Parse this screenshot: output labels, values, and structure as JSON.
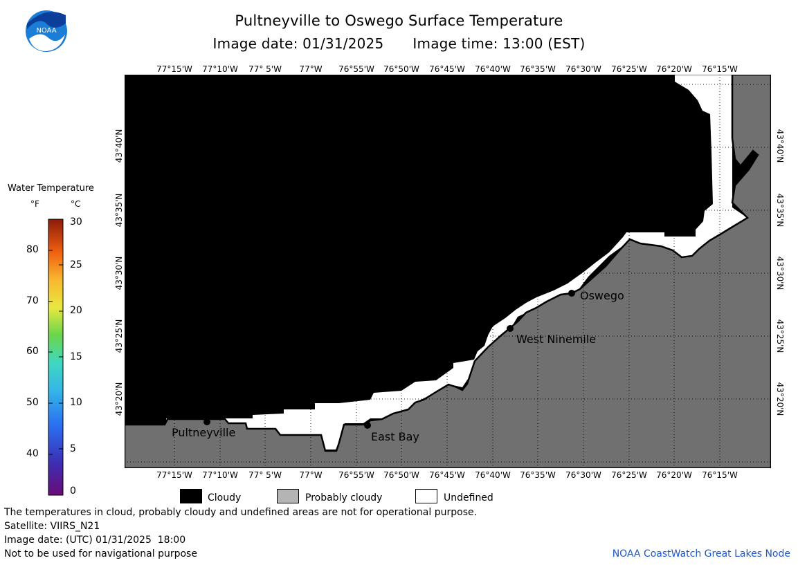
{
  "title": "Pultneyville to Oswego Surface Temperature",
  "image_date_label": "Image date: 01/31/2025",
  "image_time_label": "Image time: 13:00 (EST)",
  "logo": {
    "icon": "noaa-logo",
    "text": "NOAA"
  },
  "longitude_labels": [
    "77°15'W",
    "77°10'W",
    "77° 5'W",
    "77°W",
    "76°55'W",
    "76°50'W",
    "76°45'W",
    "76°40'W",
    "76°35'W",
    "76°30'W",
    "76°25'W",
    "76°20'W",
    "76°15'W"
  ],
  "latitude_labels": [
    "43°40'N",
    "43°35'N",
    "43°30'N",
    "43°25'N",
    "43°20'N"
  ],
  "places": [
    {
      "name": "Pultneyville"
    },
    {
      "name": "East Bay"
    },
    {
      "name": "West Ninemile"
    },
    {
      "name": "Oswego"
    }
  ],
  "colorbar": {
    "title": "Water Temperature",
    "unit_f": "°F",
    "unit_c": "°C",
    "f_ticks": [
      "80",
      "70",
      "60",
      "50",
      "40"
    ],
    "c_ticks": [
      "30",
      "25",
      "20",
      "15",
      "10",
      "5",
      "0"
    ]
  },
  "map_key": [
    {
      "label": "Cloudy",
      "color": "#000000"
    },
    {
      "label": "Probably cloudy",
      "color": "#b4b4b4"
    },
    {
      "label": "Undefined",
      "color": "#ffffff"
    }
  ],
  "footer": {
    "note": "The temperatures in cloud, probably cloudy and undefined areas are not for operational purpose.",
    "satellite": "Satellite: VIIRS_N21",
    "utc_date": "Image date: (UTC) 01/31/2025  18:00",
    "disclaimer": "Not to be used for navigational purpose",
    "credit": "NOAA CoastWatch Great Lakes Node"
  },
  "colors": {
    "land": "#707070",
    "cloud": "#000000",
    "undefined": "#ffffff",
    "credit": "#1e58c9"
  }
}
